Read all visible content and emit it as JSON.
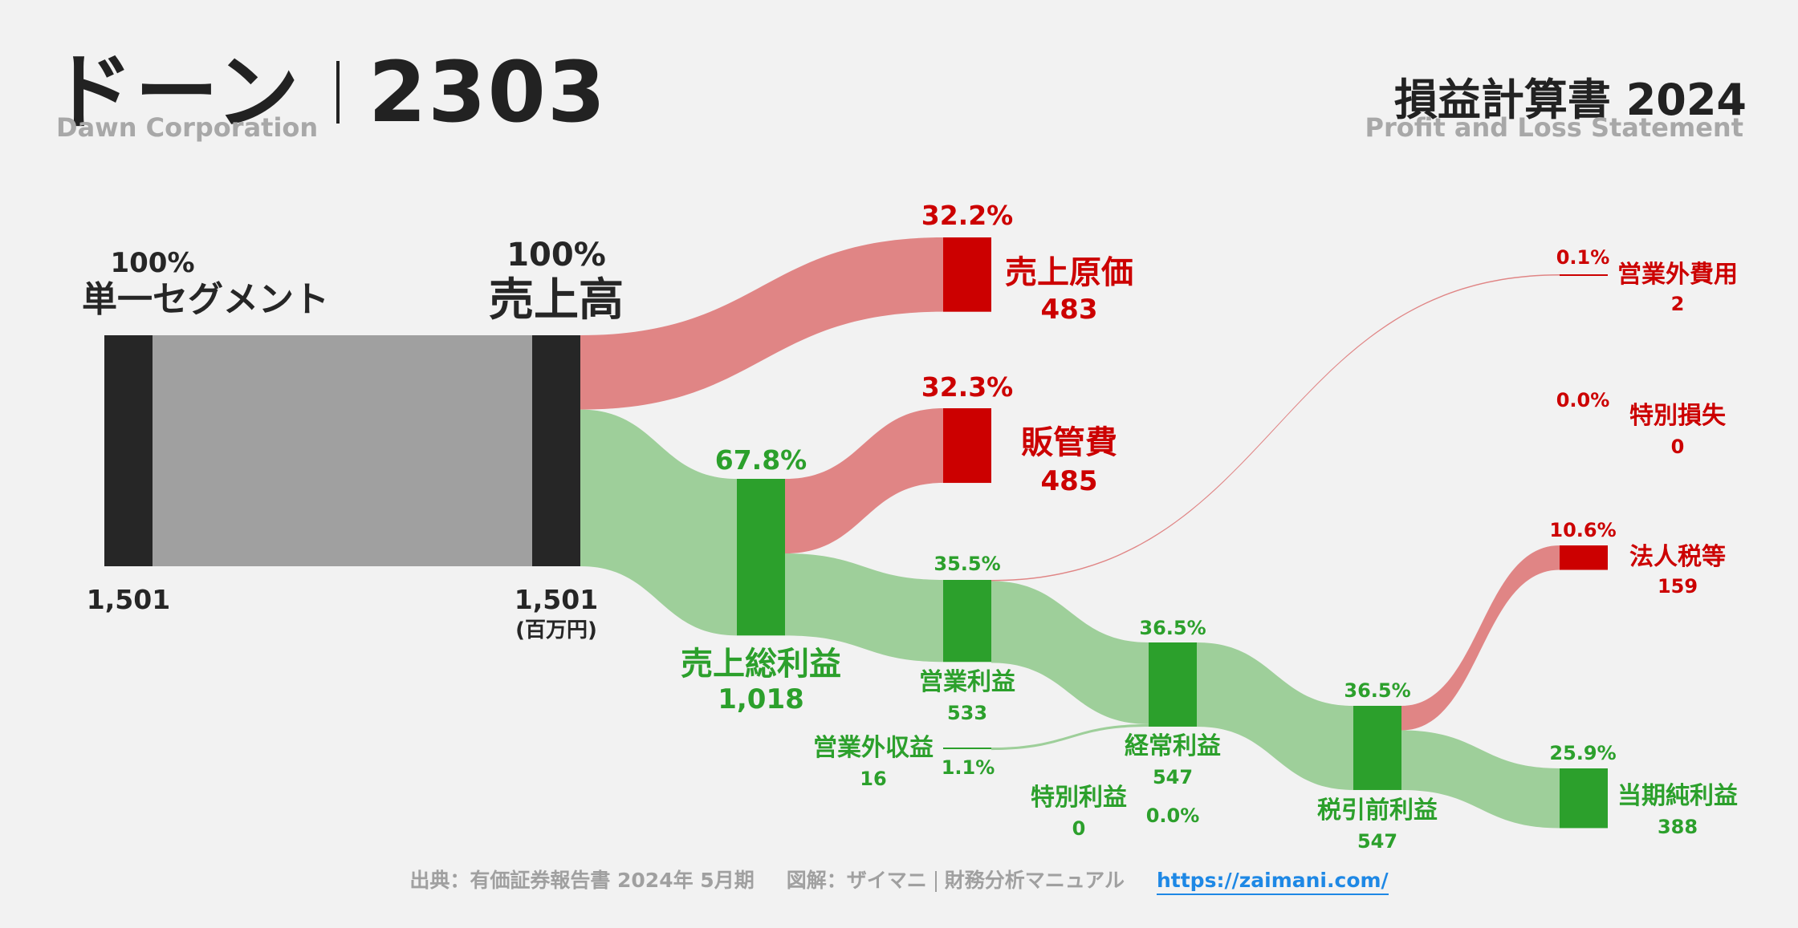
{
  "header": {
    "company_name": "ドーン",
    "ticker": "2303",
    "company_en": "Dawn Corporation",
    "statement_title": "損益計算書 2024",
    "statement_en": "Profit and Loss Statement"
  },
  "chart_data": {
    "type": "sankey",
    "unit": "(百万円)",
    "nodes": [
      {
        "id": "segment",
        "name": "単一セグメント",
        "value": 1501,
        "value_label": "1,501",
        "pct": "100%",
        "color": "#262626"
      },
      {
        "id": "revenue",
        "name": "売上高",
        "value": 1501,
        "value_label": "1,501",
        "pct": "100%",
        "color": "#262626"
      },
      {
        "id": "cogs",
        "name": "売上原価",
        "value": 483,
        "value_label": "483",
        "pct": "32.2%",
        "color": "#cc0000"
      },
      {
        "id": "gross",
        "name": "売上総利益",
        "value": 1018,
        "value_label": "1,018",
        "pct": "67.8%",
        "color": "#2ca02c"
      },
      {
        "id": "sga",
        "name": "販管費",
        "value": 485,
        "value_label": "485",
        "pct": "32.3%",
        "color": "#cc0000"
      },
      {
        "id": "operating",
        "name": "営業利益",
        "value": 533,
        "value_label": "533",
        "pct": "35.5%",
        "color": "#2ca02c"
      },
      {
        "id": "nonop_income",
        "name": "営業外収益",
        "value": 16,
        "value_label": "16",
        "pct": "1.1%",
        "color": "#2ca02c"
      },
      {
        "id": "nonop_expense",
        "name": "営業外費用",
        "value": 2,
        "value_label": "2",
        "pct": "0.1%",
        "color": "#cc0000"
      },
      {
        "id": "ordinary",
        "name": "経常利益",
        "value": 547,
        "value_label": "547",
        "pct": "36.5%",
        "color": "#2ca02c"
      },
      {
        "id": "extra_income",
        "name": "特別利益",
        "value": 0,
        "value_label": "0",
        "pct": "0.0%",
        "color": "#2ca02c"
      },
      {
        "id": "extra_loss",
        "name": "特別損失",
        "value": 0,
        "value_label": "0",
        "pct": "0.0%",
        "color": "#cc0000"
      },
      {
        "id": "pretax",
        "name": "税引前利益",
        "value": 547,
        "value_label": "547",
        "pct": "36.5%",
        "color": "#2ca02c"
      },
      {
        "id": "tax",
        "name": "法人税等",
        "value": 159,
        "value_label": "159",
        "pct": "10.6%",
        "color": "#cc0000"
      },
      {
        "id": "net",
        "name": "当期純利益",
        "value": 388,
        "value_label": "388",
        "pct": "25.9%",
        "color": "#2ca02c"
      }
    ],
    "links": [
      {
        "source": "segment",
        "target": "revenue",
        "value": 1501,
        "color": "#a0a0a0"
      },
      {
        "source": "revenue",
        "target": "cogs",
        "value": 483,
        "color": "#e08585"
      },
      {
        "source": "revenue",
        "target": "gross",
        "value": 1018,
        "color": "#9ecf9a"
      },
      {
        "source": "gross",
        "target": "sga",
        "value": 485,
        "color": "#e08585"
      },
      {
        "source": "gross",
        "target": "operating",
        "value": 533,
        "color": "#9ecf9a"
      },
      {
        "source": "operating",
        "target": "nonop_expense",
        "value": 2,
        "color": "#e08585"
      },
      {
        "source": "operating",
        "target": "ordinary",
        "value": 531,
        "color": "#9ecf9a"
      },
      {
        "source": "nonop_income",
        "target": "ordinary",
        "value": 16,
        "color": "#9ecf9a"
      },
      {
        "source": "ordinary",
        "target": "pretax",
        "value": 547,
        "color": "#9ecf9a"
      },
      {
        "source": "pretax",
        "target": "tax",
        "value": 159,
        "color": "#e08585"
      },
      {
        "source": "pretax",
        "target": "net",
        "value": 388,
        "color": "#9ecf9a"
      }
    ]
  },
  "footer": {
    "source": "出典：有価証券報告書 2024年 5月期",
    "credit": "図解：ザイマニ",
    "site_name": "財務分析マニュアル",
    "url": "https://zaimani.com/"
  }
}
